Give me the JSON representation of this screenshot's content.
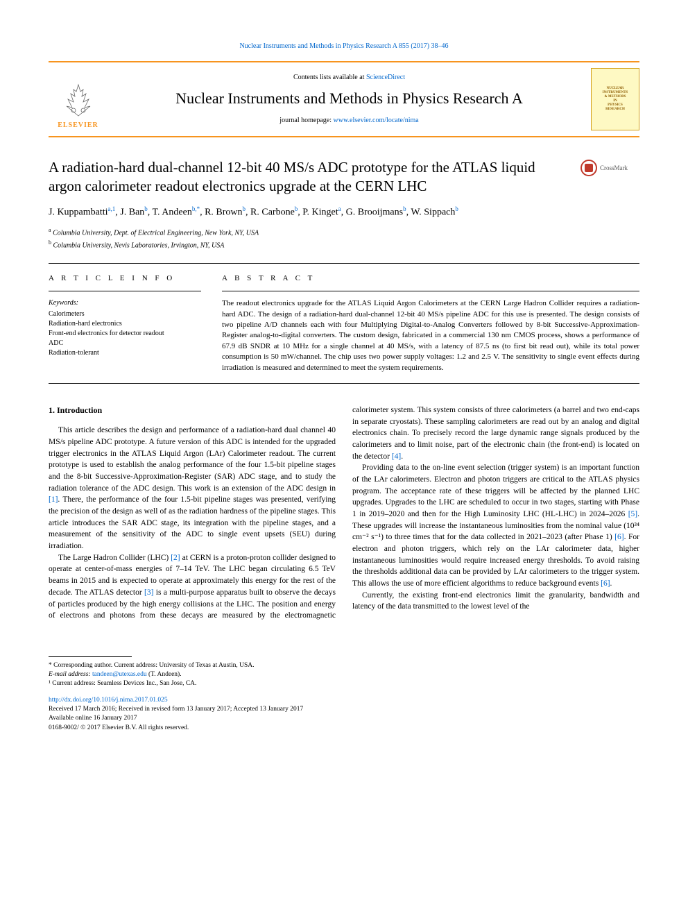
{
  "top_citation": "Nuclear Instruments and Methods in Physics Research A 855 (2017) 38–46",
  "header": {
    "contents_prefix": "Contents lists available at ",
    "contents_link": "ScienceDirect",
    "journal_name": "Nuclear Instruments and Methods in Physics Research A",
    "homepage_prefix": "journal homepage: ",
    "homepage_url": "www.elsevier.com/locate/nima",
    "elsevier": "ELSEVIER",
    "cover_line1": "NUCLEAR",
    "cover_line2": "INSTRUMENTS",
    "cover_line3": "& METHODS",
    "cover_line4": "IN",
    "cover_line5": "PHYSICS",
    "cover_line6": "RESEARCH"
  },
  "crossmark": "CrossMark",
  "article_title": "A radiation-hard dual-channel 12-bit 40 MS/s ADC prototype for the ATLAS liquid argon calorimeter readout electronics upgrade at the CERN LHC",
  "authors_html": "J. Kuppambatti<span class='sup'>a,1</span>, J. Ban<span class='sup'>b</span>, T. Andeen<span class='sup'>b,*</span>, R. Brown<span class='sup'>b</span>, R. Carbone<span class='sup'>b</span>, P. Kinget<span class='sup'>a</span>, G. Brooijmans<span class='sup'>b</span>, W. Sippach<span class='sup'>b</span>",
  "affiliations": {
    "a": "Columbia University, Dept. of Electrical Engineering, New York, NY, USA",
    "b": "Columbia University, Nevis Laboratories, Irvington, NY, USA"
  },
  "article_info_heading": "A R T I C L E  I N F O",
  "abstract_heading": "A B S T R A C T",
  "keywords_label": "Keywords:",
  "keywords": [
    "Calorimeters",
    "Radiation-hard electronics",
    "Front-end electronics for detector readout",
    "ADC",
    "Radiation-tolerant"
  ],
  "abstract_text": "The readout electronics upgrade for the ATLAS Liquid Argon Calorimeters at the CERN Large Hadron Collider requires a radiation-hard ADC. The design of a radiation-hard dual-channel 12-bit 40 MS/s pipeline ADC for this use is presented. The design consists of two pipeline A/D channels each with four Multiplying Digital-to-Analog Converters followed by 8-bit Successive-Approximation-Register analog-to-digital converters. The custom design, fabricated in a commercial 130 nm CMOS process, shows a performance of 67.9 dB SNDR at 10 MHz for a single channel at 40 MS/s, with a latency of 87.5 ns (to first bit read out), while its total power consumption is 50 mW/channel. The chip uses two power supply voltages: 1.2 and 2.5 V. The sensitivity to single event effects during irradiation is measured and determined to meet the system requirements.",
  "section1_heading": "1. Introduction",
  "body": {
    "p1": "This article describes the design and performance of a radiation-hard dual channel 40 MS/s pipeline ADC prototype. A future version of this ADC is intended for the upgraded trigger electronics in the ATLAS Liquid Argon (LAr) Calorimeter readout. The current prototype is used to establish the analog performance of the four 1.5-bit pipeline stages and the 8-bit Successive-Approximation-Register (SAR) ADC stage, and to study the radiation tolerance of the ADC design. This work is an extension of the ADC design in ",
    "p1_ref": "[1]",
    "p1b": ". There, the performance of the four 1.5-bit pipeline stages was presented, verifying the precision of the design as well of as the radiation hardness of the pipeline stages. This article introduces the SAR ADC stage, its integration with the pipeline stages, and a measurement of the sensitivity of the ADC to single event upsets (SEU) during irradiation.",
    "p2a": "The Large Hadron Collider (LHC) ",
    "p2_ref1": "[2]",
    "p2b": " at CERN is a proton-proton collider designed to operate at center-of-mass energies of 7–14 TeV. The LHC began circulating 6.5 TeV beams in 2015 and is expected to operate at approximately this energy for the rest of the decade. The ATLAS detector ",
    "p2_ref2": "[3]",
    "p2c": " is a multi-purpose apparatus built to observe the decays of particles produced by the high energy collisions at the LHC. The position and energy of electrons and photons from these decays are measured by the electromagnetic calorimeter system. This system consists of three calorimeters (a barrel and two end-caps in separate cryostats). These sampling calorimeters are read out by an analog and digital electronics chain. To precisely record the large dynamic range signals produced by the calorimeters and to limit noise, part of the electronic chain (the front-end) is located on the detector ",
    "p2_ref3": "[4]",
    "p2d": ".",
    "p3a": "Providing data to the on-line event selection (trigger system) is an important function of the LAr calorimeters. Electron and photon triggers are critical to the ATLAS physics program. The acceptance rate of these triggers will be affected by the planned LHC upgrades. Upgrades to the LHC are scheduled to occur in two stages, starting with Phase 1 in 2019–2020 and then for the High Luminosity LHC (HL-LHC) in 2024–2026 ",
    "p3_ref1": "[5]",
    "p3b": ". These upgrades will increase the instantaneous luminosities from the nominal value (10³⁴ cm⁻² s⁻¹) to three times that for the data collected in 2021–2023 (after Phase 1) ",
    "p3_ref2": "[6]",
    "p3c": ". For electron and photon triggers, which rely on the LAr calorimeter data, higher instantaneous luminosities would require increased energy thresholds. To avoid raising the thresholds additional data can be provided by LAr calorimeters to the trigger system. This allows the use of more efficient algorithms to reduce background events ",
    "p3_ref3": "[6]",
    "p3d": ".",
    "p4": "Currently, the existing front-end electronics limit the granularity, bandwidth and latency of the data transmitted to the lowest level of the"
  },
  "footer": {
    "corr": "* Corresponding author. Current address: University of Texas at Austin, USA.",
    "email_label": "E-mail address: ",
    "email": "tandeen@utexas.edu",
    "email_suffix": " (T. Andeen).",
    "note1": "¹ Current address: Seamless Devices Inc., San Jose, CA.",
    "doi": "http://dx.doi.org/10.1016/j.nima.2017.01.025",
    "received": "Received 17 March 2016; Received in revised form 13 January 2017; Accepted 13 January 2017",
    "available": "Available online 16 January 2017",
    "copyright": "0168-9002/ © 2017 Elsevier B.V. All rights reserved."
  },
  "colors": {
    "link": "#0066cc",
    "orange": "#f7941e",
    "text": "#000000",
    "cover_bg": "#fef9c3",
    "cover_border": "#d4a017",
    "cover_text": "#8b5a00",
    "crossmark_red": "#c0392b"
  }
}
